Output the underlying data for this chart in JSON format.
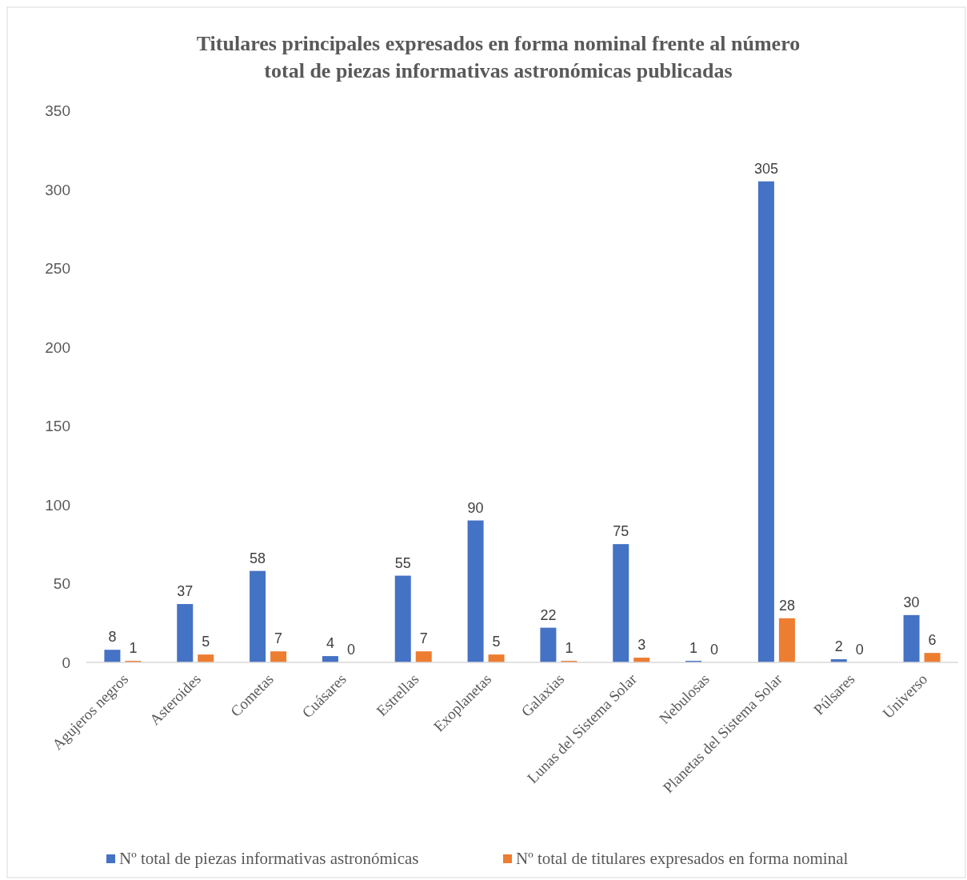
{
  "chart_data": {
    "type": "bar",
    "title": "Titulares principales expresados en forma nominal frente al número total de piezas informativas astronómicas publicadas",
    "categories": [
      "Agujeros negros",
      "Asteroides",
      "Cometas",
      "Cuásares",
      "Estrellas",
      "Exoplanetas",
      "Galaxias",
      "Lunas del Sistema Solar",
      "Nebulosas",
      "Planetas del Sistema Solar",
      "Púlsares",
      "Universo"
    ],
    "series": [
      {
        "name": "Nº total de piezas informativas astronómicas",
        "color": "#4472c4",
        "values": [
          8,
          37,
          58,
          4,
          55,
          90,
          22,
          75,
          1,
          305,
          2,
          30
        ]
      },
      {
        "name": "Nº total de titulares expresados en forma nominal",
        "color": "#ed7d31",
        "values": [
          1,
          5,
          7,
          0,
          7,
          5,
          1,
          3,
          0,
          28,
          0,
          6
        ]
      }
    ],
    "ylim": [
      0,
      350
    ],
    "yticks": [
      0,
      50,
      100,
      150,
      200,
      250,
      300,
      350
    ],
    "grid": false,
    "legend": "bottom",
    "data_labels": true
  }
}
